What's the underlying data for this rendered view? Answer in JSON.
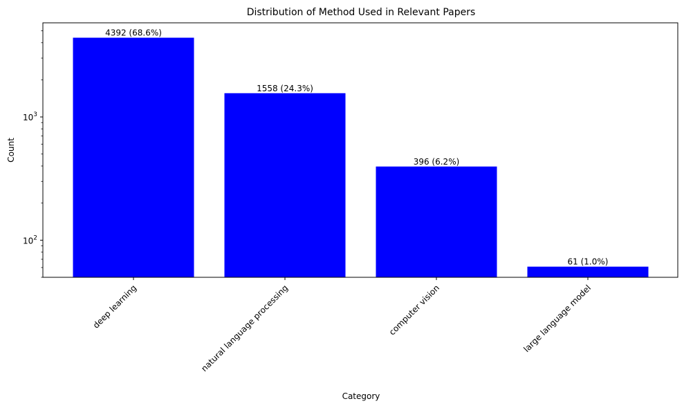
{
  "chart_data": {
    "type": "bar",
    "title": "Distribution of Method Used in Relevant Papers",
    "xlabel": "Category",
    "ylabel": "Count",
    "yscale": "log",
    "ylim": [
      50,
      5800
    ],
    "grid": false,
    "bar_color": "#0000ff",
    "categories": [
      "deep learning",
      "natural language processing",
      "computer vision",
      "large language model"
    ],
    "values": [
      4392,
      1558,
      396,
      61
    ],
    "data_labels": [
      "4392 (68.6%)",
      "1558 (24.3%)",
      "396 (6.2%)",
      "61 (1.0%)"
    ],
    "y_major_ticks": [
      {
        "value": 100,
        "base": "10",
        "exp": "2"
      },
      {
        "value": 1000,
        "base": "10",
        "exp": "3"
      }
    ],
    "y_minor_ticks": [
      50,
      60,
      70,
      80,
      90,
      200,
      300,
      400,
      500,
      600,
      700,
      800,
      900,
      2000,
      3000,
      4000,
      5000
    ]
  }
}
